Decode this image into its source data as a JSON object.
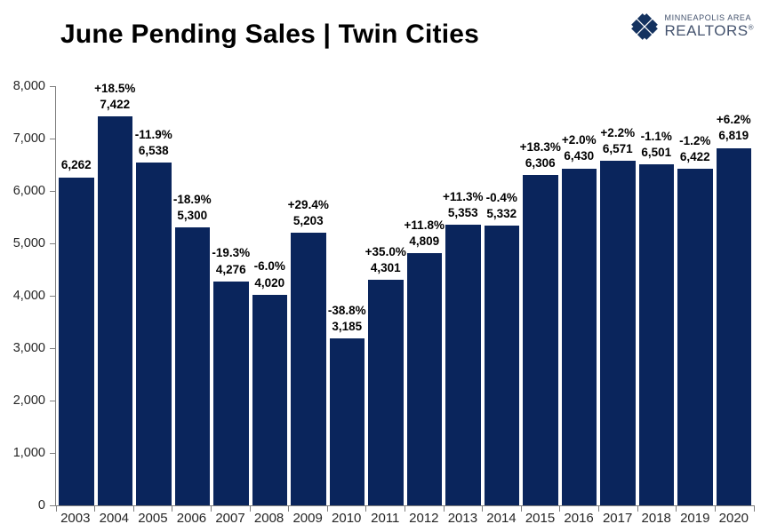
{
  "title": "June Pending Sales | Twin Cities",
  "logo": {
    "line1": "MINNEAPOLIS AREA",
    "line2": "REALTORS",
    "registered": "®"
  },
  "colors": {
    "bar": "#0a255c",
    "axis": "#7f7f7f",
    "data_label": "#000000",
    "tick_label": "#262626",
    "logo_text": "#44536e",
    "logo_icon": "#14325f"
  },
  "chart_data": {
    "type": "bar",
    "title": "June Pending Sales | Twin Cities",
    "xlabel": "",
    "ylabel": "",
    "ylim": [
      0,
      8000
    ],
    "y_tick_step": 1000,
    "y_tick_labels": [
      "8,000",
      "7,000",
      "6,000",
      "5,000",
      "4,000",
      "3,000",
      "2,000",
      "1,000",
      "0"
    ],
    "grid": false,
    "legend": false,
    "categories": [
      "2003",
      "2004",
      "2005",
      "2006",
      "2007",
      "2008",
      "2009",
      "2010",
      "2011",
      "2012",
      "2013",
      "2014",
      "2015",
      "2016",
      "2017",
      "2018",
      "2019",
      "2020"
    ],
    "values": [
      6262,
      7422,
      6538,
      5300,
      4276,
      4020,
      5203,
      3185,
      4301,
      4809,
      5353,
      5332,
      6306,
      6430,
      6571,
      6501,
      6422,
      6819
    ],
    "value_labels": [
      "6,262",
      "7,422",
      "6,538",
      "5,300",
      "4,276",
      "4,020",
      "5,203",
      "3,185",
      "4,301",
      "4,809",
      "5,353",
      "5,332",
      "6,306",
      "6,430",
      "6,571",
      "6,501",
      "6,422",
      "6,819"
    ],
    "pct_change_labels": [
      "",
      "+18.5%",
      "-11.9%",
      "-18.9%",
      "-19.3%",
      "-6.0%",
      "+29.4%",
      "-38.8%",
      "+35.0%",
      "+11.8%",
      "+11.3%",
      "-0.4%",
      "+18.3%",
      "+2.0%",
      "+2.2%",
      "-1.1%",
      "-1.2%",
      "+6.2%"
    ]
  }
}
